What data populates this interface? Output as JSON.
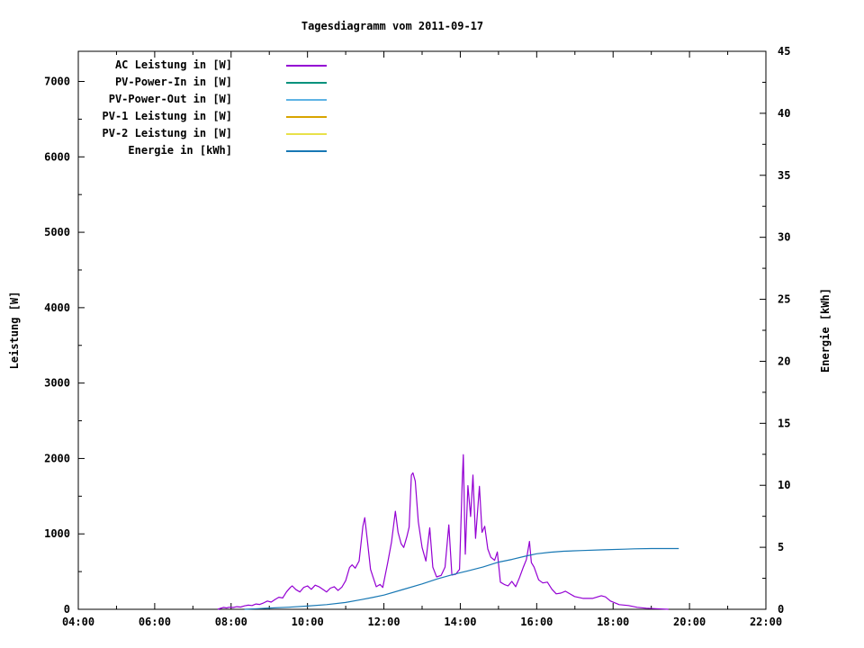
{
  "chart_data": {
    "type": "line",
    "title": "Tagesdiagramm vom 2011-09-17",
    "grid": "off",
    "legend_position": "top-left-inside",
    "x": {
      "unit": "time",
      "min_hour": 4,
      "max_hour": 22,
      "major_tick_hours": [
        4,
        6,
        8,
        10,
        12,
        14,
        16,
        18,
        20,
        22
      ],
      "major_tick_labels": [
        "04:00",
        "06:00",
        "08:00",
        "10:00",
        "12:00",
        "14:00",
        "16:00",
        "18:00",
        "20:00",
        "22:00"
      ],
      "minor_tick_hours": [
        5,
        7,
        9,
        11,
        13,
        15,
        17,
        19,
        21
      ]
    },
    "y_left": {
      "label": "Leistung [W]",
      "min": 0,
      "max": 7400,
      "major_ticks": [
        0,
        1000,
        2000,
        3000,
        4000,
        5000,
        6000,
        7000
      ],
      "major_tick_labels": [
        "0",
        "1000",
        "2000",
        "3000",
        "4000",
        "5000",
        "6000",
        "7000"
      ],
      "minor_ticks": [
        500,
        1500,
        2500,
        3500,
        4500,
        5500,
        6500
      ]
    },
    "y_right": {
      "label": "Energie [kWh]",
      "min": 0,
      "max": 45,
      "major_ticks": [
        0,
        5,
        10,
        15,
        20,
        25,
        30,
        35,
        40,
        45
      ],
      "major_tick_labels": [
        "0",
        "5",
        "10",
        "15",
        "20",
        "25",
        "30",
        "35",
        "40",
        "45"
      ],
      "minor_ticks": [
        2.5,
        7.5,
        12.5,
        17.5,
        22.5,
        27.5,
        32.5,
        37.5,
        42.5
      ]
    },
    "series": [
      {
        "name": "AC Leistung in [W]",
        "color": "#9400d3",
        "axis": "left",
        "points": [
          [
            7.65,
            0
          ],
          [
            7.72,
            12
          ],
          [
            7.8,
            25
          ],
          [
            7.88,
            18
          ],
          [
            7.95,
            28
          ],
          [
            8.05,
            24
          ],
          [
            8.15,
            35
          ],
          [
            8.25,
            30
          ],
          [
            8.35,
            45
          ],
          [
            8.45,
            55
          ],
          [
            8.55,
            50
          ],
          [
            8.65,
            70
          ],
          [
            8.75,
            65
          ],
          [
            8.85,
            85
          ],
          [
            8.95,
            110
          ],
          [
            9.05,
            95
          ],
          [
            9.15,
            130
          ],
          [
            9.25,
            160
          ],
          [
            9.35,
            150
          ],
          [
            9.45,
            230
          ],
          [
            9.55,
            290
          ],
          [
            9.6,
            310
          ],
          [
            9.7,
            260
          ],
          [
            9.8,
            230
          ],
          [
            9.9,
            290
          ],
          [
            10.0,
            310
          ],
          [
            10.1,
            265
          ],
          [
            10.2,
            320
          ],
          [
            10.3,
            300
          ],
          [
            10.4,
            265
          ],
          [
            10.5,
            230
          ],
          [
            10.6,
            280
          ],
          [
            10.7,
            300
          ],
          [
            10.8,
            250
          ],
          [
            10.9,
            295
          ],
          [
            11.0,
            380
          ],
          [
            11.1,
            555
          ],
          [
            11.17,
            590
          ],
          [
            11.25,
            545
          ],
          [
            11.35,
            640
          ],
          [
            11.45,
            1100
          ],
          [
            11.5,
            1215
          ],
          [
            11.57,
            900
          ],
          [
            11.65,
            530
          ],
          [
            11.72,
            420
          ],
          [
            11.8,
            300
          ],
          [
            11.9,
            330
          ],
          [
            11.97,
            290
          ],
          [
            12.1,
            620
          ],
          [
            12.2,
            890
          ],
          [
            12.3,
            1300
          ],
          [
            12.37,
            1020
          ],
          [
            12.45,
            870
          ],
          [
            12.52,
            820
          ],
          [
            12.6,
            960
          ],
          [
            12.66,
            1090
          ],
          [
            12.72,
            1780
          ],
          [
            12.76,
            1810
          ],
          [
            12.82,
            1700
          ],
          [
            12.9,
            1160
          ],
          [
            13.0,
            820
          ],
          [
            13.1,
            640
          ],
          [
            13.2,
            1080
          ],
          [
            13.28,
            560
          ],
          [
            13.38,
            430
          ],
          [
            13.5,
            450
          ],
          [
            13.6,
            560
          ],
          [
            13.7,
            1120
          ],
          [
            13.78,
            455
          ],
          [
            13.88,
            465
          ],
          [
            13.98,
            530
          ],
          [
            14.05,
            1700
          ],
          [
            14.08,
            2050
          ],
          [
            14.13,
            730
          ],
          [
            14.2,
            1640
          ],
          [
            14.27,
            1230
          ],
          [
            14.33,
            1780
          ],
          [
            14.4,
            940
          ],
          [
            14.5,
            1630
          ],
          [
            14.57,
            1020
          ],
          [
            14.64,
            1100
          ],
          [
            14.72,
            800
          ],
          [
            14.8,
            690
          ],
          [
            14.9,
            650
          ],
          [
            14.97,
            760
          ],
          [
            15.05,
            360
          ],
          [
            15.15,
            330
          ],
          [
            15.25,
            310
          ],
          [
            15.35,
            370
          ],
          [
            15.45,
            300
          ],
          [
            15.55,
            420
          ],
          [
            15.65,
            560
          ],
          [
            15.73,
            660
          ],
          [
            15.81,
            900
          ],
          [
            15.86,
            620
          ],
          [
            15.93,
            560
          ],
          [
            16.05,
            390
          ],
          [
            16.16,
            350
          ],
          [
            16.28,
            360
          ],
          [
            16.4,
            265
          ],
          [
            16.51,
            205
          ],
          [
            16.63,
            215
          ],
          [
            16.75,
            240
          ],
          [
            16.99,
            170
          ],
          [
            17.22,
            145
          ],
          [
            17.46,
            145
          ],
          [
            17.69,
            180
          ],
          [
            17.8,
            165
          ],
          [
            17.93,
            110
          ],
          [
            18.16,
            62
          ],
          [
            18.4,
            50
          ],
          [
            18.63,
            26
          ],
          [
            18.87,
            14
          ],
          [
            19.11,
            8
          ],
          [
            19.3,
            4
          ],
          [
            19.45,
            0
          ]
        ]
      },
      {
        "name": "PV-Power-In in [W]",
        "color": "#00917c",
        "axis": "left",
        "points": []
      },
      {
        "name": "PV-Power-Out in [W]",
        "color": "#5eb3e4",
        "axis": "left",
        "points": []
      },
      {
        "name": "PV-1 Leistung in [W]",
        "color": "#d8a400",
        "axis": "left",
        "points": []
      },
      {
        "name": "PV-2 Leistung in [W]",
        "color": "#e8e14a",
        "axis": "left",
        "points": []
      },
      {
        "name": "Energie in [kWh]",
        "color": "#1878b4",
        "axis": "right",
        "points": [
          [
            8.35,
            0.0
          ],
          [
            8.7,
            0.05
          ],
          [
            9.0,
            0.1
          ],
          [
            9.5,
            0.17
          ],
          [
            10.0,
            0.26
          ],
          [
            10.5,
            0.38
          ],
          [
            11.0,
            0.55
          ],
          [
            11.4,
            0.78
          ],
          [
            11.7,
            0.95
          ],
          [
            12.0,
            1.15
          ],
          [
            12.5,
            1.6
          ],
          [
            13.0,
            2.05
          ],
          [
            13.4,
            2.45
          ],
          [
            13.8,
            2.8
          ],
          [
            14.2,
            3.1
          ],
          [
            14.6,
            3.42
          ],
          [
            15.0,
            3.8
          ],
          [
            15.35,
            4.02
          ],
          [
            15.7,
            4.28
          ],
          [
            16.0,
            4.48
          ],
          [
            16.35,
            4.6
          ],
          [
            16.7,
            4.68
          ],
          [
            17.2,
            4.74
          ],
          [
            17.75,
            4.8
          ],
          [
            18.3,
            4.85
          ],
          [
            18.55,
            4.88
          ],
          [
            19.0,
            4.9
          ],
          [
            19.72,
            4.9
          ]
        ]
      }
    ]
  }
}
